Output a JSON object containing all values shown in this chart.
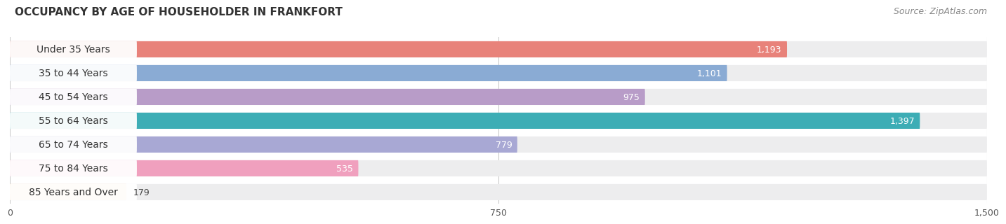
{
  "title": "OCCUPANCY BY AGE OF HOUSEHOLDER IN FRANKFORT",
  "source": "Source: ZipAtlas.com",
  "categories": [
    "Under 35 Years",
    "35 to 44 Years",
    "45 to 54 Years",
    "55 to 64 Years",
    "65 to 74 Years",
    "75 to 84 Years",
    "85 Years and Over"
  ],
  "values": [
    1193,
    1101,
    975,
    1397,
    779,
    535,
    179
  ],
  "bar_colors": [
    "#E8827A",
    "#8AABD4",
    "#B89CC8",
    "#3DADB5",
    "#A8A8D4",
    "#F0A0BE",
    "#F5CFA0"
  ],
  "bar_bg_colors": [
    "#EDEDEE",
    "#EDEDEE",
    "#EDEDEE",
    "#EDEDEE",
    "#EDEDEE",
    "#EDEDEE",
    "#EDEDEE"
  ],
  "label_bg_color": "#FFFFFF",
  "xlim": [
    0,
    1500
  ],
  "xticks": [
    0,
    750,
    1500
  ],
  "title_fontsize": 11,
  "source_fontsize": 9,
  "label_fontsize": 10,
  "value_fontsize": 9,
  "background_color": "#ffffff",
  "bar_height": 0.68,
  "grid_color": "#cccccc",
  "fig_bg": "#f7f7f7"
}
